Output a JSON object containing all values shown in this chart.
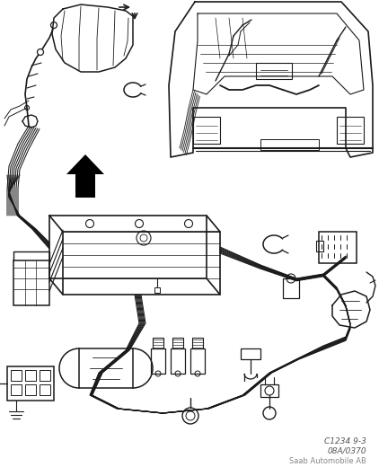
{
  "background_color": "#ffffff",
  "line_color": "#1a1a1a",
  "figure_width": 4.22,
  "figure_height": 5.3,
  "dpi": 100,
  "caption_line1": "C1234 9-3",
  "caption_line2": "08A/0370",
  "caption_line3": "Saab Automobile AB"
}
